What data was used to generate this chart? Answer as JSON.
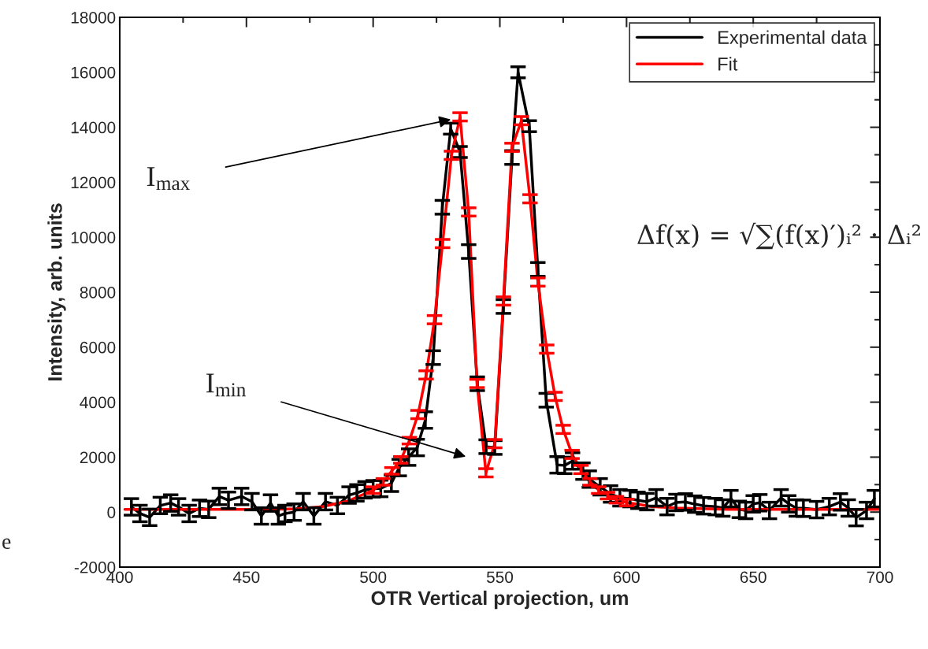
{
  "chart_data": {
    "type": "line",
    "xlabel": "OTR Vertical projection, um",
    "ylabel": "Intensity, arb. units",
    "xlim": [
      400,
      700
    ],
    "xticks": [
      400,
      450,
      500,
      550,
      600,
      650,
      700
    ],
    "ylim": [
      -2000,
      18000
    ],
    "yticks": [
      -2000,
      0,
      2000,
      4000,
      6000,
      8000,
      10000,
      12000,
      14000,
      16000,
      18000
    ],
    "grid": false,
    "legend": "top right",
    "marker": "none",
    "line_style": "solid",
    "series": [
      {
        "name": "Experimental data",
        "color": "#000000",
        "x": [
          404.6,
          408,
          411.8,
          416,
          420.1,
          423.2,
          427.4,
          431.5,
          435.1,
          439.3,
          442.9,
          448.1,
          452.2,
          455.9,
          459.5,
          462.6,
          465.2,
          468.8,
          472.4,
          476.6,
          481.2,
          485.9,
          490.5,
          493.6,
          496.8,
          500,
          503,
          507.2,
          510.3,
          514,
          517.4,
          520.6,
          523.7,
          527.3,
          530.6,
          534.3,
          537.7,
          541.1,
          544.6,
          548,
          551.4,
          554.8,
          557.2,
          561.6,
          565,
          568.3,
          572.6,
          575.6,
          578.7,
          582.8,
          585.3,
          589.6,
          593.7,
          597.4,
          601.4,
          604.5,
          608,
          611.7,
          616,
          619.5,
          623.2,
          626.9,
          630.4,
          635,
          638,
          641.2,
          644.5,
          647,
          650,
          652.6,
          656.4,
          661,
          664,
          667,
          669.8,
          675,
          680,
          684.4,
          687.5,
          690.6,
          694.7,
          697.8
        ],
        "values": [
          190,
          -50,
          -190,
          240,
          330,
          190,
          -50,
          140,
          100,
          570,
          430,
          570,
          380,
          -140,
          330,
          -140,
          -50,
          0,
          380,
          -140,
          380,
          240,
          620,
          700,
          810,
          850,
          860,
          1050,
          1620,
          2000,
          2350,
          3350,
          5620,
          11090,
          13950,
          13100,
          9480,
          4670,
          2380,
          2350,
          7480,
          12900,
          16000,
          14040,
          8830,
          4070,
          1720,
          1700,
          1860,
          1490,
          1200,
          920,
          660,
          520,
          490,
          430,
          380,
          520,
          200,
          350,
          370,
          290,
          230,
          200,
          150,
          490,
          100,
          60,
          300,
          340,
          60,
          520,
          300,
          150,
          140,
          90,
          200,
          370,
          150,
          -200,
          60,
          490
        ],
        "errors": [
          300,
          300,
          300,
          300,
          300,
          300,
          300,
          300,
          300,
          300,
          300,
          300,
          300,
          300,
          300,
          300,
          300,
          300,
          300,
          300,
          300,
          300,
          300,
          300,
          300,
          300,
          300,
          300,
          300,
          300,
          300,
          300,
          250,
          250,
          200,
          200,
          250,
          250,
          250,
          250,
          250,
          250,
          200,
          200,
          250,
          250,
          300,
          300,
          300,
          300,
          300,
          300,
          300,
          300,
          300,
          300,
          300,
          300,
          300,
          300,
          300,
          300,
          300,
          300,
          300,
          300,
          300,
          300,
          300,
          300,
          300,
          300,
          300,
          300,
          300,
          300,
          300,
          300,
          300,
          300,
          300,
          300
        ]
      },
      {
        "name": "Fit",
        "color": "#ff0000",
        "x": [
          402,
          430,
          460,
          470,
          480,
          490,
          500,
          504,
          507.4,
          510.9,
          514.3,
          517.7,
          520.9,
          524.2,
          527.4,
          530.9,
          534.3,
          537.7,
          541,
          544.5,
          548,
          551.4,
          554.8,
          558.5,
          561.9,
          565,
          568.5,
          571.8,
          575,
          578.5,
          582,
          585.5,
          589,
          592.5,
          596,
          600,
          605,
          610,
          620,
          640,
          670,
          700
        ],
        "values": [
          100,
          100,
          100,
          120,
          200,
          400,
          800,
          1100,
          1500,
          1900,
          2600,
          3550,
          4990,
          7000,
          9770,
          12980,
          14380,
          10920,
          4680,
          1430,
          2490,
          7680,
          13270,
          14240,
          11400,
          8370,
          5930,
          4210,
          3010,
          2100,
          1550,
          1100,
          800,
          600,
          450,
          350,
          280,
          200,
          150,
          100,
          100,
          100
        ],
        "errors": [
          null,
          null,
          null,
          null,
          null,
          null,
          120,
          120,
          120,
          120,
          120,
          150,
          150,
          150,
          150,
          150,
          150,
          150,
          150,
          150,
          150,
          150,
          150,
          150,
          150,
          150,
          150,
          150,
          150,
          150,
          150,
          120,
          120,
          120,
          120,
          120,
          null,
          null,
          null,
          null,
          null,
          null
        ]
      }
    ],
    "annotations": [
      {
        "text": "I$_{max}$",
        "x": 531.5,
        "y": 14300
      },
      "I$_{min}$",
      "Δf(x) = √∑(f(x)′)ᵢ² · Δᵢ²",
      "e"
    ]
  }
}
